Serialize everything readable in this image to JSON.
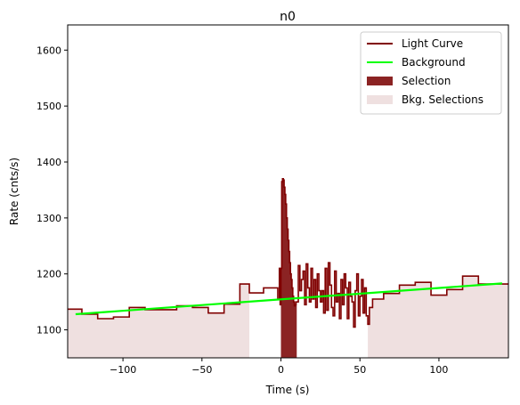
{
  "chart_data": {
    "type": "line",
    "title": "n0",
    "xlabel": "Time (s)",
    "ylabel": "Rate (cnts/s)",
    "xlim": [
      -135,
      144
    ],
    "ylim": [
      1050,
      1645
    ],
    "x_ticks": [
      -100,
      -50,
      0,
      50,
      100
    ],
    "y_ticks": [
      1100,
      1200,
      1300,
      1400,
      1500,
      1600
    ],
    "grid": false,
    "legend_position": "top-right",
    "legend": [
      {
        "label": "Light Curve",
        "kind": "line",
        "color": "#800000"
      },
      {
        "label": "Background",
        "kind": "line",
        "color": "#00ff00"
      },
      {
        "label": "Selection",
        "kind": "patch",
        "color": "#8b2323"
      },
      {
        "label": "Bkg. Selections",
        "kind": "patch",
        "color": "#efe0e0"
      }
    ],
    "bkg_selections": [
      [
        -135,
        -20
      ],
      [
        55,
        144
      ]
    ],
    "selection": [
      0,
      10
    ],
    "background_fit": {
      "x": [
        -130,
        140
      ],
      "y": [
        1128,
        1183
      ]
    },
    "light_curve": {
      "x": [
        -135,
        -126,
        -116,
        -106,
        -96,
        -86,
        -76,
        -66,
        -56,
        -46,
        -36,
        -26,
        -20,
        -20,
        -11,
        -2,
        -1,
        -0.5,
        0,
        0.5,
        1,
        1.5,
        2,
        2.5,
        3,
        3.5,
        4,
        4.5,
        5,
        5.5,
        6,
        6.5,
        7,
        7.5,
        8,
        8.5,
        9,
        9.5,
        10,
        11,
        12,
        13,
        14,
        15,
        16,
        17,
        18,
        19,
        20,
        21,
        22,
        23,
        24,
        25,
        26,
        27,
        28,
        29,
        30,
        31,
        32,
        33,
        34,
        35,
        36,
        37,
        38,
        39,
        40,
        41,
        42,
        43,
        44,
        45,
        46,
        47,
        48,
        49,
        50,
        51,
        52,
        53,
        54,
        55,
        56,
        58,
        65,
        75,
        85,
        95,
        105,
        115,
        125,
        135,
        144
      ],
      "y": [
        1137,
        1128,
        1120,
        1123,
        1140,
        1136,
        1136,
        1143,
        1140,
        1130,
        1146,
        1182,
        1165,
        1166,
        1175,
        1155,
        1210,
        1145,
        1210,
        1365,
        1370,
        1368,
        1355,
        1342,
        1325,
        1300,
        1280,
        1260,
        1240,
        1220,
        1200,
        1190,
        1175,
        1160,
        1150,
        1143,
        1145,
        1150,
        1150,
        1215,
        1170,
        1190,
        1205,
        1145,
        1218,
        1175,
        1150,
        1210,
        1155,
        1190,
        1140,
        1200,
        1170,
        1150,
        1170,
        1130,
        1210,
        1135,
        1220,
        1180,
        1140,
        1125,
        1205,
        1150,
        1165,
        1120,
        1190,
        1145,
        1200,
        1175,
        1120,
        1185,
        1160,
        1150,
        1105,
        1170,
        1200,
        1125,
        1160,
        1190,
        1130,
        1175,
        1125,
        1110,
        1140,
        1155,
        1165,
        1180,
        1185,
        1162,
        1172,
        1196,
        1182,
        1182,
        1182
      ]
    }
  }
}
